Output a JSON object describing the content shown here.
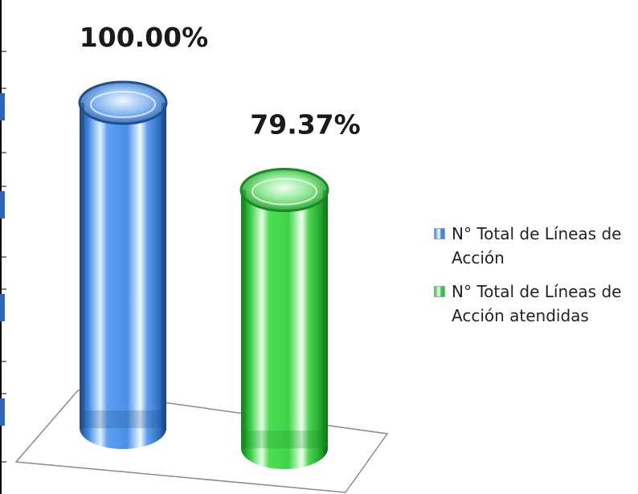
{
  "chart_data": {
    "type": "bar",
    "categories": [
      "N° Total de Líneas de Acción",
      "N° Total de Líneas de Acción atendidas"
    ],
    "values": [
      100.0,
      79.37
    ],
    "data_labels": [
      "100.00%",
      "79.37%"
    ],
    "ylim": [
      0,
      100
    ],
    "grid": false,
    "legend": "right",
    "colors": [
      "#3f86e0",
      "#2fc83a"
    ]
  }
}
